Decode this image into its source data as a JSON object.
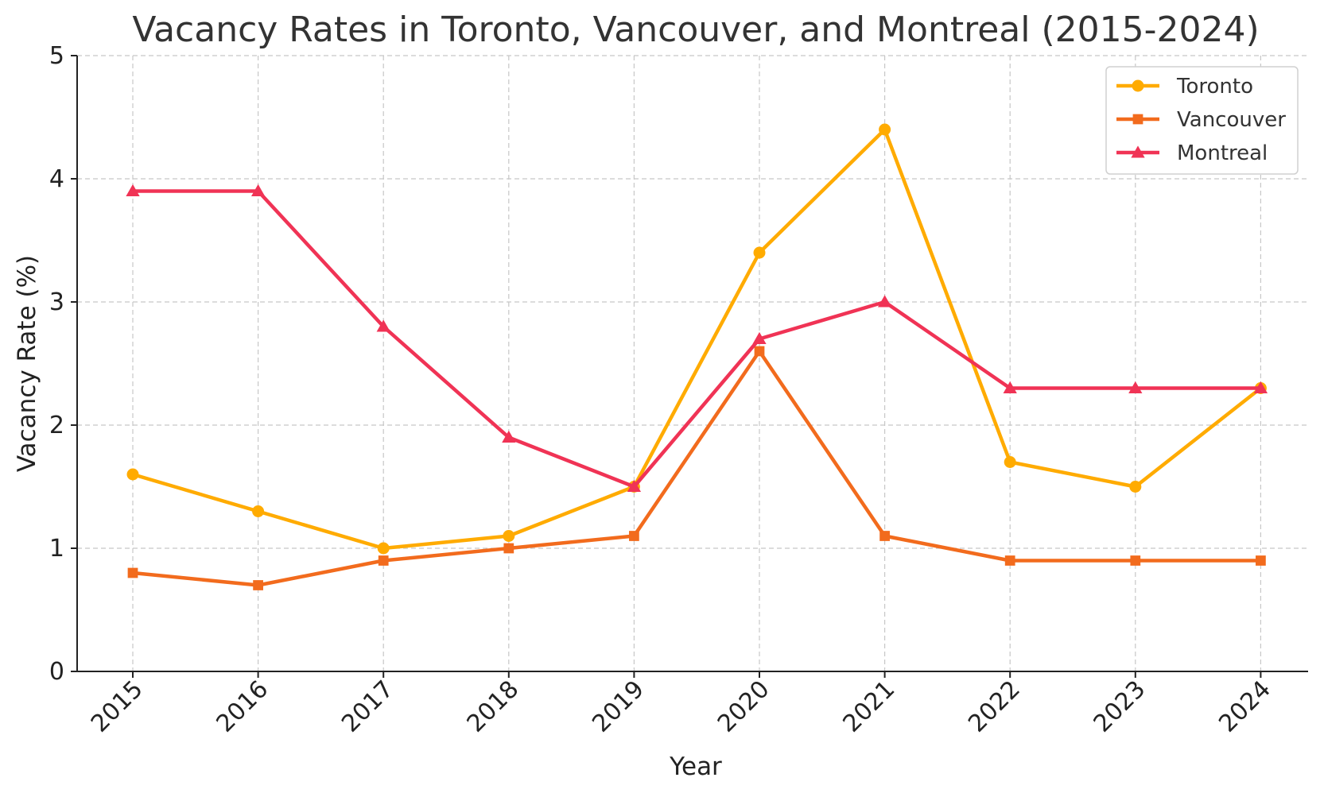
{
  "colors": {
    "background": "#ffffff",
    "grid": "#c7c7c7",
    "axis": "#222222",
    "text": "#333333"
  },
  "chart_data": {
    "type": "line",
    "title": "Vacancy Rates in Toronto, Vancouver, and Montreal (2015-2024)",
    "xlabel": "Year",
    "ylabel": "Vacancy Rate (%)",
    "categories": [
      "2015",
      "2016",
      "2017",
      "2018",
      "2019",
      "2020",
      "2021",
      "2022",
      "2023",
      "2024"
    ],
    "ylim": [
      0,
      5
    ],
    "yticks": [
      0,
      1,
      2,
      3,
      4,
      5
    ],
    "grid": true,
    "legend_position": "top-right",
    "series": [
      {
        "name": "Toronto",
        "marker": "circle",
        "color": "#ffab00",
        "values": [
          1.6,
          1.3,
          1.0,
          1.1,
          1.5,
          3.4,
          4.4,
          1.7,
          1.5,
          2.3
        ]
      },
      {
        "name": "Vancouver",
        "marker": "square",
        "color": "#f26b1d",
        "values": [
          0.8,
          0.7,
          0.9,
          1.0,
          1.1,
          2.6,
          1.1,
          0.9,
          0.9,
          0.9
        ]
      },
      {
        "name": "Montreal",
        "marker": "triangle",
        "color": "#f03355",
        "values": [
          3.9,
          3.9,
          2.8,
          1.9,
          1.5,
          2.7,
          3.0,
          2.3,
          2.3,
          2.3
        ]
      }
    ]
  }
}
